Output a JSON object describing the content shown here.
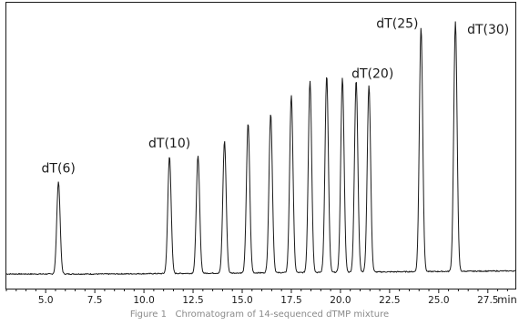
{
  "caption": "Figure 1   Chromatogram of 14-sequenced dTMP mixture",
  "chart_data": {
    "type": "line",
    "title": "",
    "xlabel": "min",
    "ylabel": "",
    "xlim": [
      3.0,
      28.9
    ],
    "x_ticks": [
      5.0,
      7.5,
      10.0,
      12.5,
      15.0,
      17.5,
      20.0,
      22.5,
      25.0,
      27.5
    ],
    "x_tick_labels": [
      "5.0",
      "7.5",
      "10.0",
      "12.5",
      "15.0",
      "17.5",
      "20.0",
      "22.5",
      "25.0",
      "27.5"
    ],
    "x_minor_tick_step": 0.5,
    "y_axis_visible": false,
    "grid": false,
    "line_color": "#1a1a1a",
    "peaks": [
      {
        "time": 5.65,
        "height": 0.37
      },
      {
        "time": 11.3,
        "height": 0.47
      },
      {
        "time": 12.75,
        "height": 0.47
      },
      {
        "time": 14.1,
        "height": 0.53
      },
      {
        "time": 15.3,
        "height": 0.6
      },
      {
        "time": 16.45,
        "height": 0.64
      },
      {
        "time": 17.5,
        "height": 0.71
      },
      {
        "time": 18.45,
        "height": 0.77
      },
      {
        "time": 19.3,
        "height": 0.79
      },
      {
        "time": 20.1,
        "height": 0.78
      },
      {
        "time": 20.8,
        "height": 0.77
      },
      {
        "time": 21.45,
        "height": 0.75
      },
      {
        "time": 24.1,
        "height": 0.98
      },
      {
        "time": 25.85,
        "height": 1.0
      }
    ],
    "annotations": [
      {
        "text": "dT(6)",
        "x": 5.65
      },
      {
        "text": "dT(10)",
        "x": 11.3
      },
      {
        "text": "dT(20)",
        "x": 21.45
      },
      {
        "text": "dT(25)",
        "x": 24.1
      },
      {
        "text": "dT(30)",
        "x": 25.85
      }
    ]
  }
}
